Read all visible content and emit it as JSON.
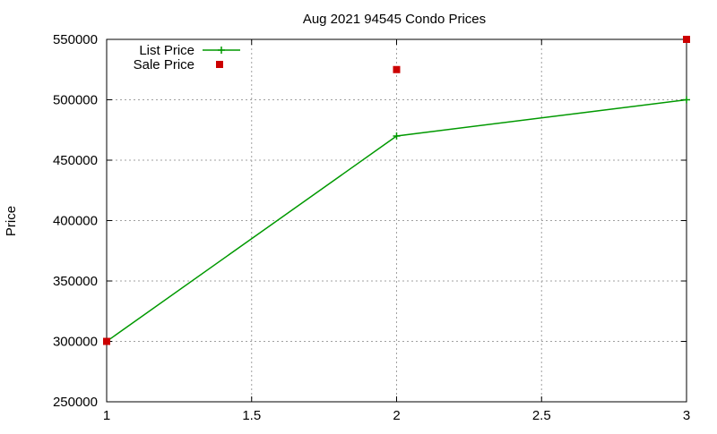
{
  "chart_data": {
    "type": "line",
    "title": "Aug 2021 94545 Condo Prices",
    "xlabel": "",
    "ylabel": "Price",
    "xlim": [
      1,
      3
    ],
    "ylim": [
      250000,
      550000
    ],
    "x_ticks": [
      1,
      1.5,
      2,
      2.5,
      3
    ],
    "x_tick_labels": [
      "1",
      "1.5",
      "2",
      "2.5",
      "3"
    ],
    "y_ticks": [
      250000,
      300000,
      350000,
      400000,
      450000,
      500000,
      550000
    ],
    "y_tick_labels": [
      "250000",
      "300000",
      "350000",
      "400000",
      "450000",
      "500000",
      "550000"
    ],
    "grid": true,
    "legend_position": "top-left",
    "series": [
      {
        "name": "List Price",
        "type": "line",
        "marker": "plus",
        "color": "#009900",
        "x": [
          1,
          2,
          3
        ],
        "y": [
          300000,
          470000,
          500000
        ]
      },
      {
        "name": "Sale Price",
        "type": "scatter",
        "marker": "square",
        "color": "#cc0000",
        "x": [
          1,
          2,
          3
        ],
        "y": [
          300000,
          525000,
          550000
        ]
      }
    ]
  }
}
